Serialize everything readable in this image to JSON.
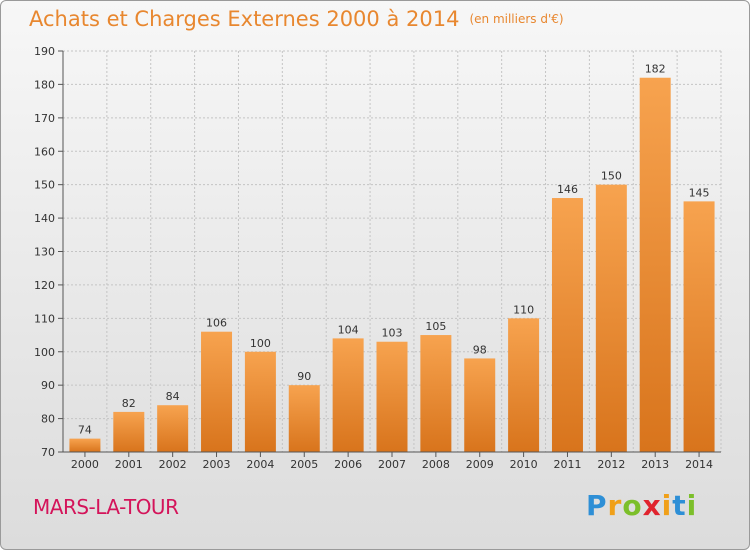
{
  "title": "Achats et Charges Externes 2000 à 2014",
  "subtitle": "(en milliers d'€)",
  "town": "MARS-LA-TOUR",
  "logo": {
    "text": "Proxiti",
    "letters": [
      "P",
      "r",
      "o",
      "x",
      "i",
      "t",
      "i"
    ],
    "colors": [
      "#2e8fd6",
      "#f0a019",
      "#7cbf2a",
      "#e0242e",
      "#f0a019",
      "#2e8fd6",
      "#7cbf2a"
    ]
  },
  "colors": {
    "accent": "#e8872f",
    "town": "#d4145a",
    "bar_light": "#f7a34f",
    "bar_dark": "#d8741c"
  },
  "chart_data": {
    "type": "bar",
    "categories": [
      "2000",
      "2001",
      "2002",
      "2003",
      "2004",
      "2005",
      "2006",
      "2007",
      "2008",
      "2009",
      "2010",
      "2011",
      "2012",
      "2013",
      "2014"
    ],
    "values": [
      74,
      82,
      84,
      106,
      100,
      90,
      104,
      103,
      105,
      98,
      110,
      146,
      150,
      182,
      145
    ],
    "ylim": [
      70,
      190
    ],
    "yticks": [
      70,
      80,
      90,
      100,
      110,
      120,
      130,
      140,
      150,
      160,
      170,
      180,
      190
    ],
    "grid": true,
    "value_labels": true
  }
}
